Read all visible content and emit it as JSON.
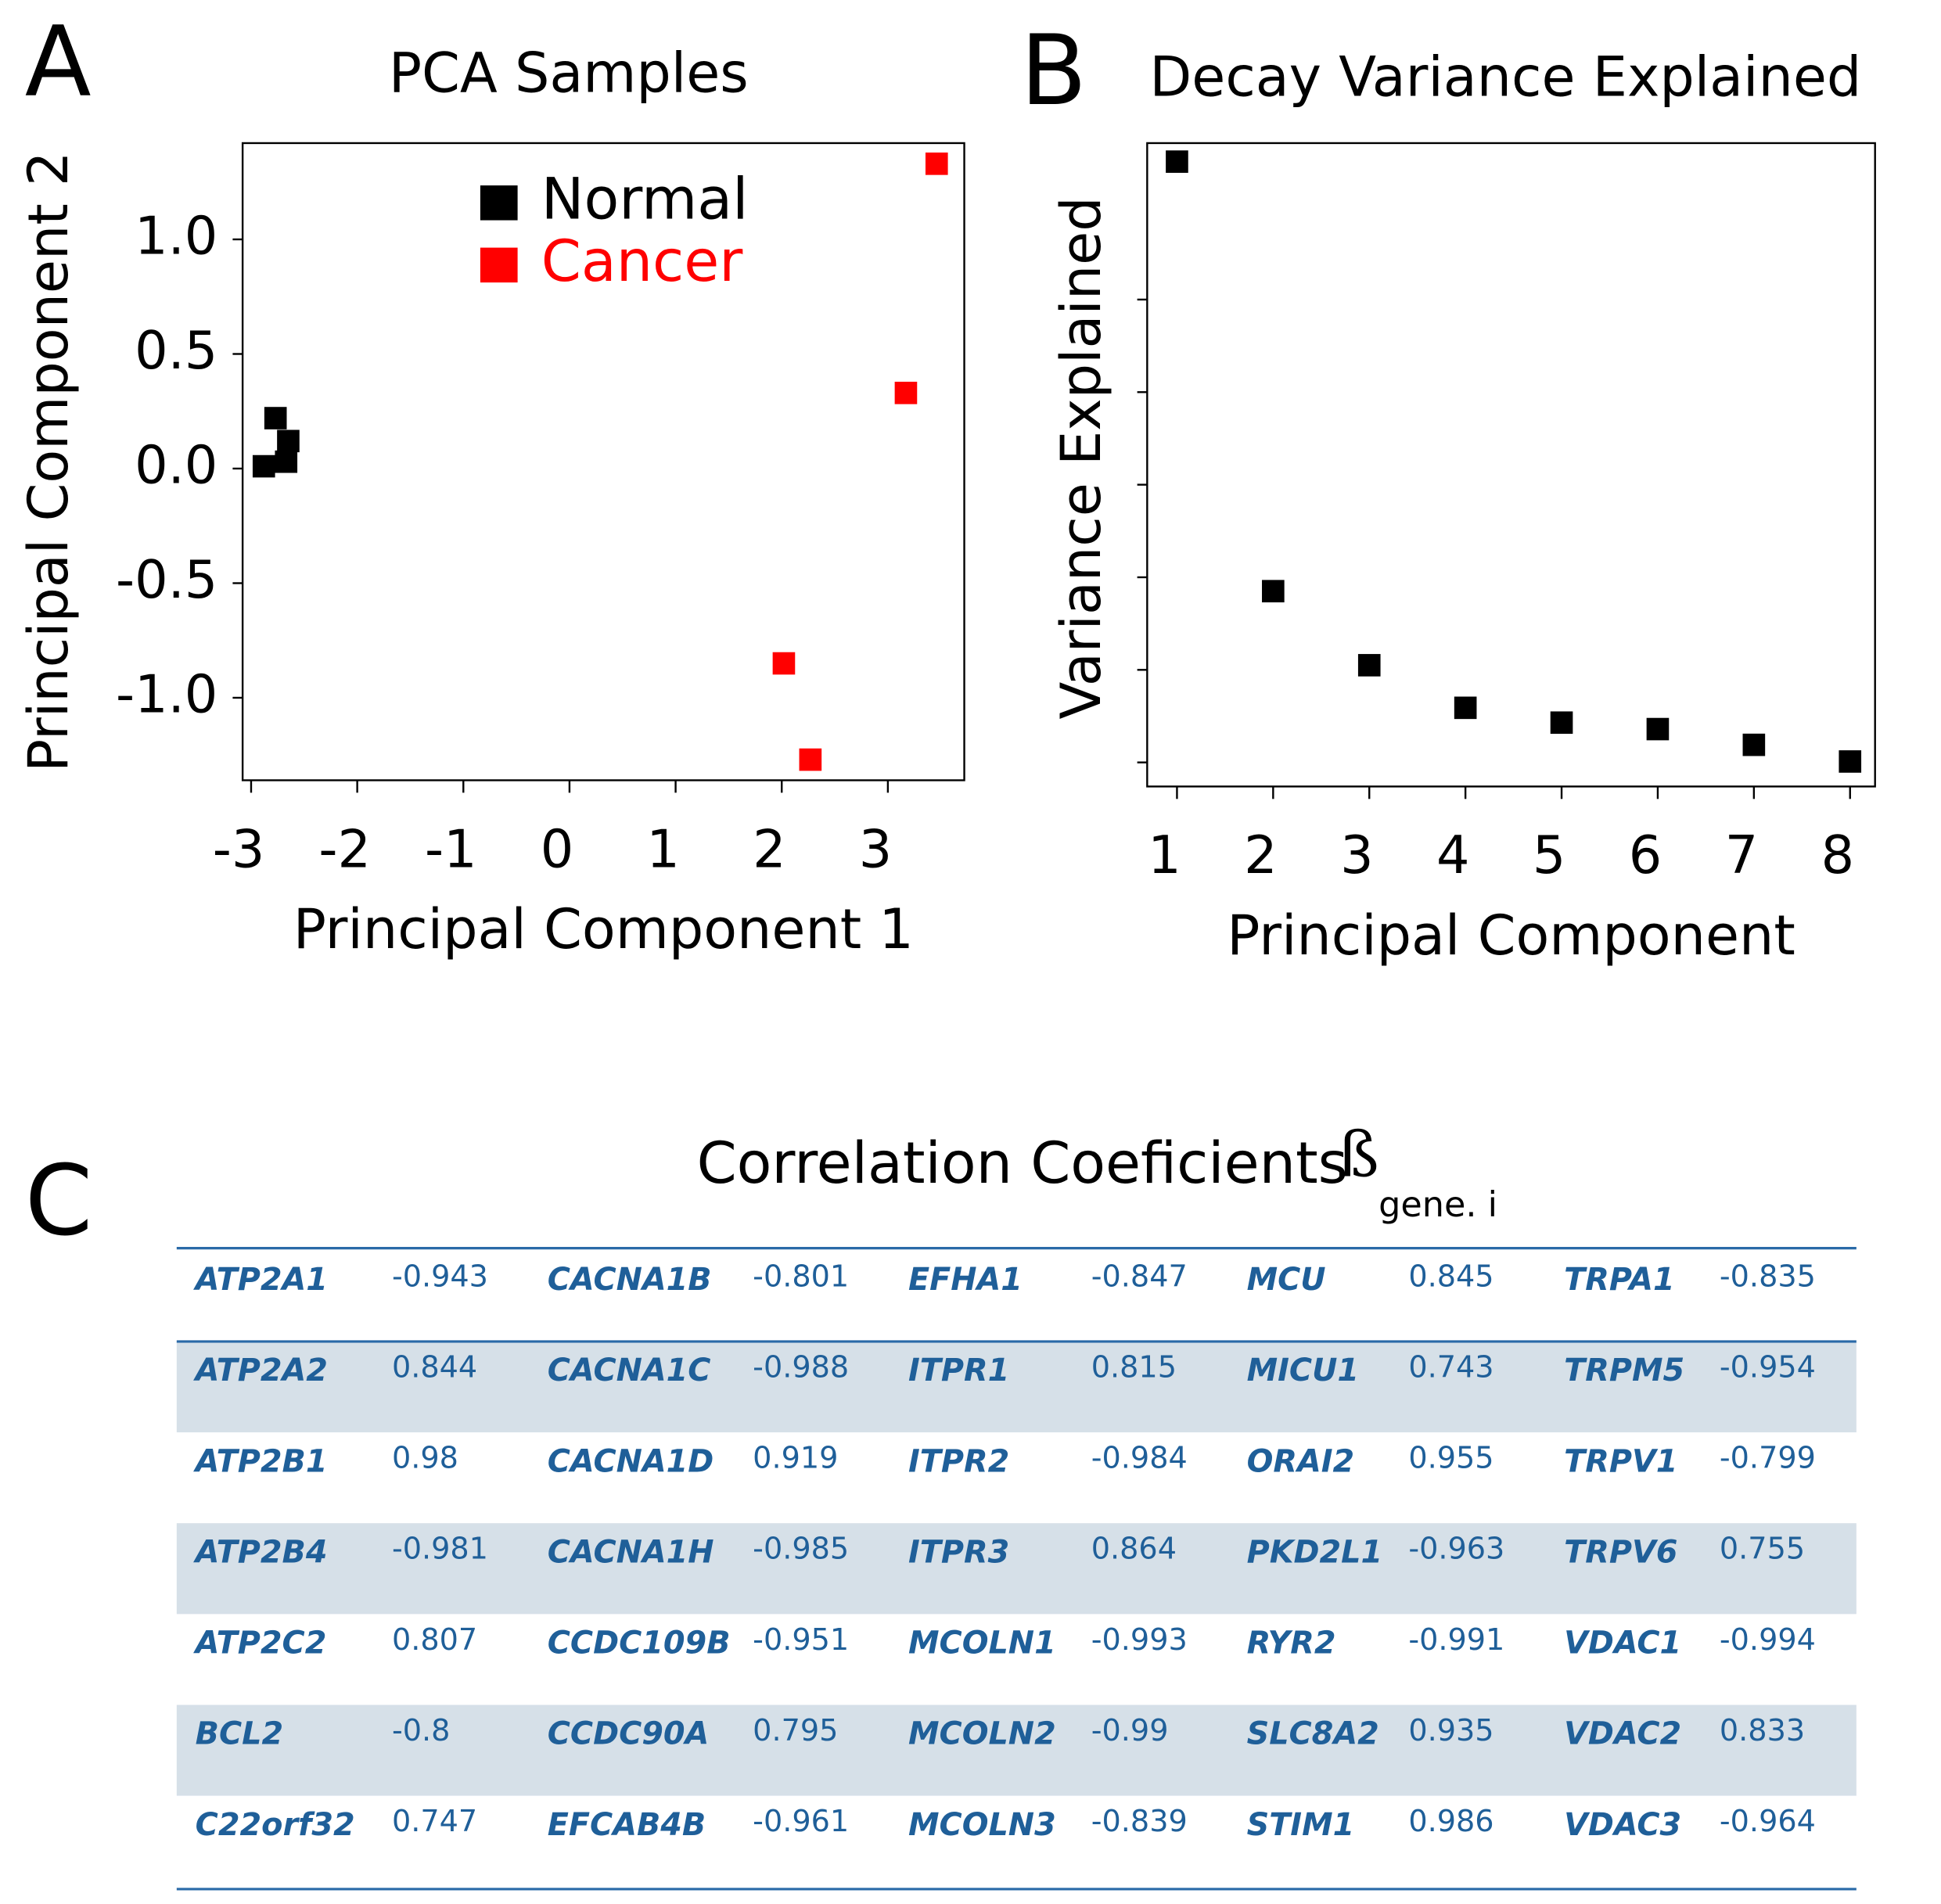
{
  "panels": [
    "A",
    "B",
    "C"
  ],
  "chart_data": [
    {
      "type": "scatter",
      "title": "PCA Samples",
      "xlabel": "Principal Component 1",
      "ylabel": "Principal Component 2",
      "xlim": [
        -3.08,
        3.72
      ],
      "xticks": [
        -3,
        -2,
        -1,
        0,
        1,
        2,
        3
      ],
      "ylim": [
        -1.36,
        1.42
      ],
      "yticks": [
        {
          "value": 1.0,
          "label": "1.0"
        },
        0.5,
        {
          "value": 0.0,
          "label": "0.0"
        },
        -0.5,
        {
          "value": -1.0,
          "label": "-1.0"
        }
      ],
      "legend": "top",
      "series": [
        {
          "name": "Normal",
          "color": "#000000",
          "x": [
            -2.77,
            -2.65,
            -2.67,
            -2.88
          ],
          "values": [
            0.22,
            0.12,
            0.03,
            0.01
          ]
        },
        {
          "name": "Cancer",
          "color": "#ff0000",
          "x": [
            3.46,
            3.17,
            2.02,
            2.27
          ],
          "values": [
            1.33,
            0.33,
            -0.85,
            -1.27
          ]
        }
      ]
    },
    {
      "type": "scatter",
      "title": "Decay Variance Explained",
      "xlabel": "Principal Component",
      "ylabel": "Variance Explained",
      "xlim": [
        0.69,
        8.26
      ],
      "xticks": [
        1,
        2,
        3,
        4,
        5,
        6,
        7,
        8
      ],
      "ylim": [
        -0.26,
        6.69
      ],
      "yticks": [
        0,
        1,
        2,
        3,
        4,
        5
      ],
      "show_ytick_labels": false,
      "series": [
        {
          "color": "#000000",
          "x": [
            1,
            2,
            3,
            4,
            5,
            6,
            7,
            8
          ],
          "values": [
            6.49,
            1.85,
            1.05,
            0.59,
            0.43,
            0.36,
            0.19,
            0.01
          ]
        }
      ]
    }
  ],
  "table": {
    "title": "Correlation Coeficients",
    "symbol": "ß",
    "subscript": "gene. i",
    "rows": [
      [
        "ATP2A1",
        -0.943,
        "CACNA1B",
        -0.801,
        "EFHA1",
        -0.847,
        "MCU",
        0.845,
        "TRPA1",
        -0.835
      ],
      [
        "ATP2A2",
        0.844,
        "CACNA1C",
        -0.988,
        "ITPR1",
        0.815,
        "MICU1",
        0.743,
        "TRPM5",
        -0.954
      ],
      [
        "ATP2B1",
        0.98,
        "CACNA1D",
        0.919,
        "ITPR2",
        -0.984,
        "ORAI2",
        0.955,
        "TRPV1",
        -0.799
      ],
      [
        "ATP2B4",
        -0.981,
        "CACNA1H",
        -0.985,
        "ITPR3",
        0.864,
        "PKD2L1",
        -0.963,
        "TRPV6",
        0.755
      ],
      [
        "ATP2C2",
        0.807,
        "CCDC109B",
        -0.951,
        "MCOLN1",
        -0.993,
        "RYR2",
        -0.991,
        "VDAC1",
        -0.994
      ],
      [
        "BCL2",
        -0.8,
        "CCDC90A",
        0.795,
        "MCOLN2",
        -0.99,
        "SLC8A2",
        0.935,
        "VDAC2",
        0.833
      ],
      [
        "C22orf32",
        0.747,
        "EFCAB4B",
        -0.961,
        "MCOLN3",
        -0.839,
        "STIM1",
        0.986,
        "VDAC3",
        -0.964
      ]
    ]
  }
}
